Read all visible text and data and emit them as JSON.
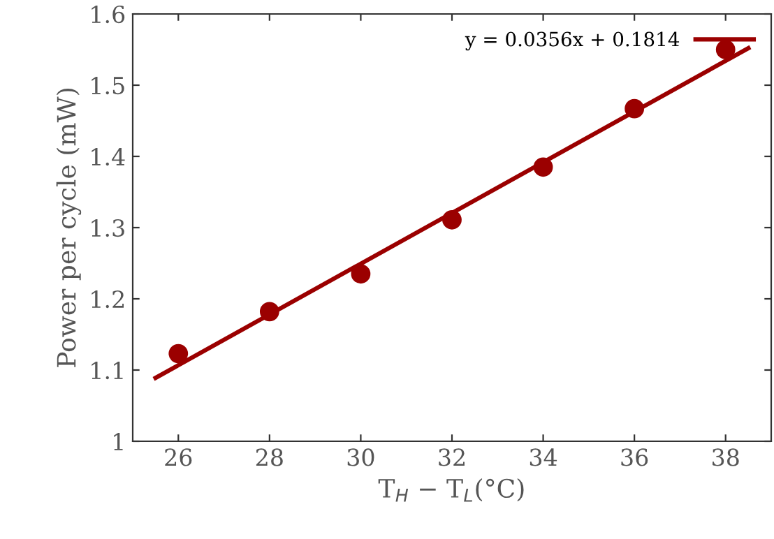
{
  "chart_data": {
    "type": "scatter",
    "xlabel": "T$_{H}$ − T$_{L}$(°C)",
    "ylabel": "Power per cycle (mW)",
    "x": [
      26,
      28,
      30,
      32,
      34,
      36,
      38
    ],
    "series": [
      {
        "color": "#9b0000",
        "marker": "circle",
        "values": [
          1.123,
          1.182,
          1.235,
          1.311,
          1.385,
          1.467,
          1.55
        ]
      },
      {
        "type": "line",
        "name": "y = 0.0356x + 0.1814",
        "color": "#9b0000",
        "x": [
          25.5,
          38.5
        ],
        "values": [
          1.089,
          1.552
        ]
      }
    ],
    "xlim": [
      25,
      39
    ],
    "xticks": [
      26,
      28,
      30,
      32,
      34,
      36,
      38
    ],
    "ylim": [
      1,
      1.6
    ],
    "yticks": [
      1,
      1.1,
      1.2,
      1.3,
      1.4,
      1.5,
      1.6
    ],
    "grid": false,
    "legend": "top right"
  }
}
